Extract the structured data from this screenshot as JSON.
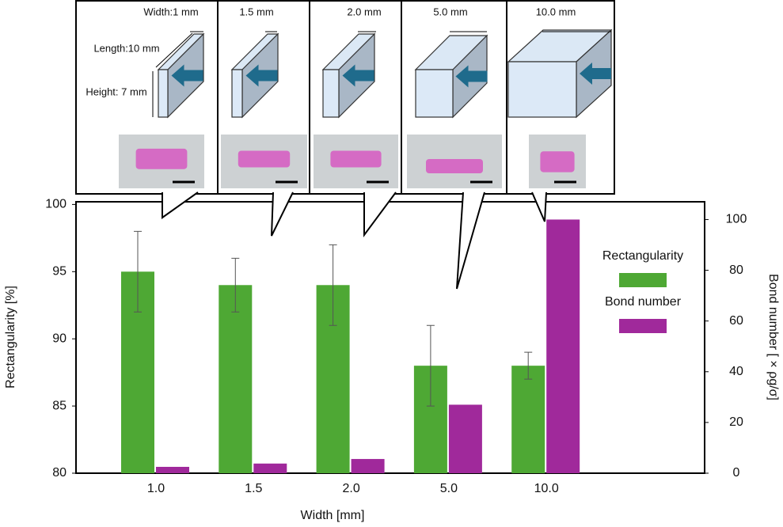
{
  "chart_data": {
    "type": "bar",
    "categories": [
      "1.0",
      "1.5",
      "2.0",
      "5.0",
      "10.0"
    ],
    "series": [
      {
        "name": "Rectangularity",
        "color": "#4ea834",
        "values": [
          95,
          94,
          94,
          88,
          88
        ],
        "errors": [
          3,
          2,
          3,
          3,
          1
        ]
      },
      {
        "name": "Bond number",
        "color": "#a0299b",
        "values": [
          2.5,
          3.8,
          5.6,
          27,
          100
        ],
        "axis": "y2"
      }
    ],
    "ylim": [
      80,
      100.2
    ],
    "yticks": [
      80,
      85,
      90,
      95,
      100
    ],
    "y2lim": [
      0,
      107
    ],
    "y2ticks": [
      0,
      20,
      40,
      60,
      80,
      100
    ],
    "xlabel": "Width [mm]",
    "ylabel": "Rectangularity [%]",
    "y2label": "Bond number [ × ρg/σ]",
    "legend": "right",
    "annotations": [
      "Width:1 mm",
      "Length:10 mm",
      "Height: 7 mm",
      "1.5 mm",
      "2.0 mm",
      "5.0 mm",
      "10.0 mm"
    ]
  }
}
